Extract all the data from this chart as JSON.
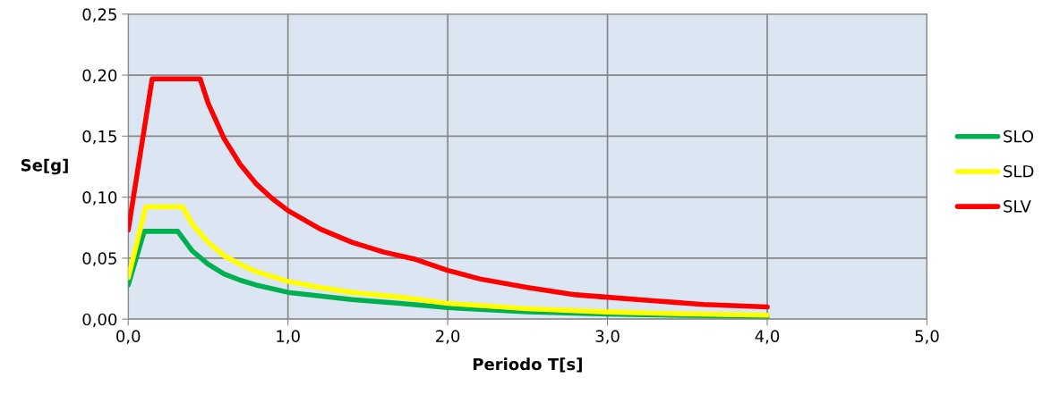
{
  "chart_data": {
    "type": "line",
    "xlabel": "Periodo T[s]",
    "ylabel": "Se[g]",
    "xlim": [
      0,
      5
    ],
    "ylim": [
      0,
      0.25
    ],
    "xticks": [
      {
        "value": 0,
        "label": "0,0"
      },
      {
        "value": 1,
        "label": "1,0"
      },
      {
        "value": 2,
        "label": "2,0"
      },
      {
        "value": 3,
        "label": "3,0"
      },
      {
        "value": 4,
        "label": "4,0"
      },
      {
        "value": 5,
        "label": "5,0"
      }
    ],
    "yticks": [
      {
        "value": 0,
        "label": "0,00"
      },
      {
        "value": 0.05,
        "label": "0,05"
      },
      {
        "value": 0.1,
        "label": "0,10"
      },
      {
        "value": 0.15,
        "label": "0,15"
      },
      {
        "value": 0.2,
        "label": "0,20"
      },
      {
        "value": 0.25,
        "label": "0,25"
      }
    ],
    "grid": true,
    "legend": "right",
    "marker": "none",
    "line_style": "solid",
    "series": [
      {
        "name": "SLO",
        "color": "#00b050",
        "x": [
          0,
          0.1,
          0.31,
          0.4,
          0.5,
          0.6,
          0.7,
          0.8,
          1.0,
          1.2,
          1.4,
          1.7,
          2.0,
          2.5,
          3.0,
          3.5,
          4.0
        ],
        "values": [
          0.028,
          0.072,
          0.072,
          0.056,
          0.045,
          0.037,
          0.032,
          0.028,
          0.022,
          0.019,
          0.016,
          0.013,
          0.0095,
          0.0061,
          0.0042,
          0.0031,
          0.0024
        ]
      },
      {
        "name": "SLD",
        "color": "#ffff00",
        "x": [
          0,
          0.11,
          0.34,
          0.4,
          0.5,
          0.6,
          0.7,
          0.8,
          1.0,
          1.2,
          1.4,
          1.7,
          2.0,
          2.5,
          3.0,
          3.5,
          4.0
        ],
        "values": [
          0.034,
          0.092,
          0.092,
          0.078,
          0.063,
          0.052,
          0.045,
          0.039,
          0.031,
          0.026,
          0.022,
          0.018,
          0.013,
          0.0085,
          0.0059,
          0.0043,
          0.0033
        ]
      },
      {
        "name": "SLV",
        "color": "#ff0000",
        "x": [
          0,
          0.15,
          0.45,
          0.5,
          0.6,
          0.7,
          0.8,
          0.9,
          1.0,
          1.2,
          1.4,
          1.6,
          1.8,
          2.0,
          2.2,
          2.5,
          2.8,
          3.0,
          3.3,
          3.6,
          4.0
        ],
        "values": [
          0.073,
          0.197,
          0.197,
          0.177,
          0.148,
          0.127,
          0.111,
          0.099,
          0.089,
          0.074,
          0.063,
          0.055,
          0.049,
          0.04,
          0.033,
          0.026,
          0.02,
          0.018,
          0.015,
          0.012,
          0.01
        ]
      }
    ]
  }
}
